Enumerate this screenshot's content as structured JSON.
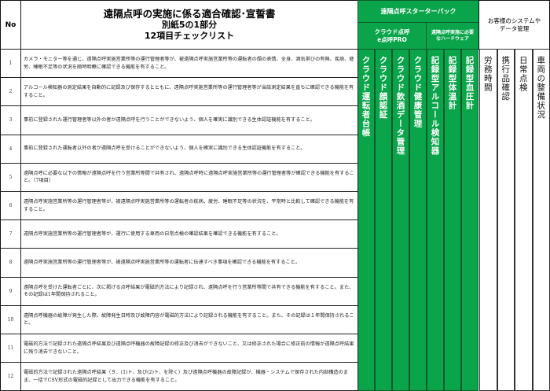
{
  "header": {
    "no_label": "No",
    "title_lines": [
      "遠隔点呼の実施に係る適合確認･宣誓書",
      "別紙5の1部分",
      "12項目チェックリスト"
    ],
    "pack_label": "遠隔点呼スターターパック",
    "cloud_group": [
      "クラウド点呼",
      "e点呼PRO"
    ],
    "hardware_group": "遠隔点呼実施に必要なハードウェア",
    "client_group": [
      "お客様のシステムや",
      "データ管理"
    ]
  },
  "green_columns": [
    "クラウド運転者台帳",
    "クラウド顔認証",
    "クラウド飲酒データ管理",
    "クラウド健康管理",
    "記録型アルコール検知器",
    "記録型体温計",
    "記録型血圧計"
  ],
  "client_columns": [
    "労務時間",
    "携行品確認",
    "日常点検",
    "車両の整備状況"
  ],
  "rows": [
    {
      "no": "1",
      "text": "カメラ・モニター等を通じ、遠隔点呼実施営業所等の運行管理者等が、被遠隔点呼実施営業所等の運転者の顔の表情、全身、酒気帯びの有無、疾病、疲労、睡眠不足等の状況を随時明瞭に確認できる機能を有すること。"
    },
    {
      "no": "2",
      "text": "アルコール検知器の測定結果を自動的に記録及び保存するとともに、遠隔点呼実施営業所等の運行管理者等が当該測定結果を直ちに確認できる機能を有すること。"
    },
    {
      "no": "3",
      "text": "事前に登録された運行管理者等以外の者が遠隔点呼を行うことができないよう、個人を確実に識別できる生体認証機能を有すること。"
    },
    {
      "no": "4",
      "text": "事前に登録された運転者以外の者が遠隔点呼を受けることができないよう、個人を確実に識別できる生体認証機能を有すること。"
    },
    {
      "no": "5",
      "text": "遠隔点呼に必要な以下の情報が遠隔点呼を行う営業所等間で共有され、遠隔点呼時に遠隔点呼実施営業所等の運行管理者等が確認できる機能を有すること。（7項目）"
    },
    {
      "no": "6",
      "text": "遠隔点呼実施営業所等の運行管理者等が、被遠隔点呼実施営業所等の運転者の疾病、疲労、睡眠不足等の状況を、平常時と比較して確認できる機能を有すること。"
    },
    {
      "no": "7",
      "text": "遠隔点呼実施営業所等の運行管理者等が、運行に使用する車両の日常点検の確認結果を確認できる機能を有すること。"
    },
    {
      "no": "8",
      "text": "遠隔点呼実施営業所等の運行管理者等が、被遠隔点呼実施営業所等の運転者に伝達すべき事項を確認できる機能を有すること。"
    },
    {
      "no": "9",
      "text": "遠隔点呼を受けた運転者ごとに、次に掲げる点呼結果が電磁的方法により記録され、遠隔点呼を行う営業所等間で共有できる機能を有すること。また、その記録は1年間保持されること。"
    },
    {
      "no": "10",
      "text": "遠隔点呼機器の故障が発生した際、故障発生日時及び故障内容が電磁的方法により記録される機能を有すること。また、その記録は１年間保持されること。"
    },
    {
      "no": "11",
      "text": "電磁的方法で記録された遠隔点呼結果及び遠隔点呼機器の故障記録の修正及び消去ができないこと、又は修正された場合に修正前の情報が遠隔点呼結果に残り消去できないこと。"
    },
    {
      "no": "12",
      "text": "電磁的方法で記録された遠隔点呼結果（９．(1)ト、及び(2)ト、を除く）及び遠隔点呼機器の故障記録が、機器・システムで保存された内部構造のまま、一括でCSV形式の電磁的記録として出力できる機能を有すること。"
    }
  ],
  "colors": {
    "green": "#0aa44a"
  }
}
